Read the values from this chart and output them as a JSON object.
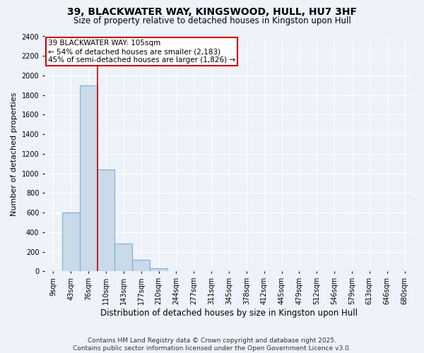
{
  "title": "39, BLACKWATER WAY, KINGSWOOD, HULL, HU7 3HF",
  "subtitle": "Size of property relative to detached houses in Kingston upon Hull",
  "xlabel": "Distribution of detached houses by size in Kingston upon Hull",
  "ylabel": "Number of detached properties",
  "footer_line1": "Contains HM Land Registry data © Crown copyright and database right 2025.",
  "footer_line2": "Contains public sector information licensed under the Open Government Licence v3.0.",
  "categories": [
    "9sqm",
    "43sqm",
    "76sqm",
    "110sqm",
    "143sqm",
    "177sqm",
    "210sqm",
    "244sqm",
    "277sqm",
    "311sqm",
    "345sqm",
    "378sqm",
    "412sqm",
    "445sqm",
    "479sqm",
    "512sqm",
    "546sqm",
    "579sqm",
    "613sqm",
    "646sqm",
    "680sqm"
  ],
  "bar_values": [
    0,
    600,
    1900,
    1040,
    280,
    120,
    30,
    0,
    0,
    0,
    0,
    0,
    0,
    0,
    0,
    0,
    0,
    0,
    0,
    0,
    0
  ],
  "bar_color": "#c9daea",
  "bar_edge_color": "#7bafd4",
  "bar_edge_width": 0.8,
  "red_line_x": 2.5,
  "red_line_color": "#cc0000",
  "annotation_text": "39 BLACKWATER WAY: 105sqm\n← 54% of detached houses are smaller (2,183)\n45% of semi-detached houses are larger (1,826) →",
  "annotation_box_color": "#ffffff",
  "annotation_box_edge": "#cc0000",
  "ylim": [
    0,
    2400
  ],
  "ytick_step": 200,
  "background_color": "#eef2f9",
  "grid_color": "#ffffff",
  "title_fontsize": 10,
  "subtitle_fontsize": 8.5,
  "xlabel_fontsize": 8.5,
  "ylabel_fontsize": 8,
  "tick_fontsize": 7,
  "annotation_fontsize": 7.5,
  "footer_fontsize": 6.5
}
